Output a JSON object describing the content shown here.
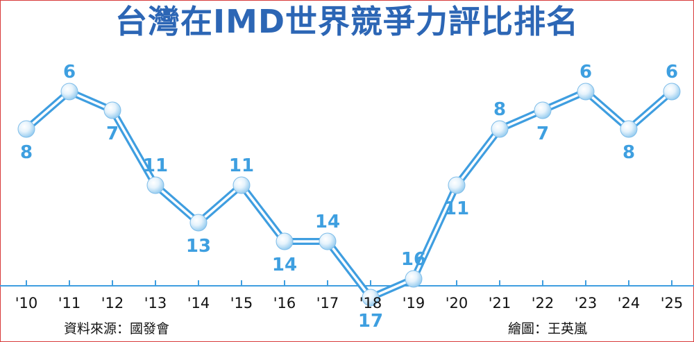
{
  "title": "台灣在IMD世界競爭力評比排名",
  "source": "資料來源：國發會",
  "credit": "繪圖：王英嵐",
  "colors": {
    "title": "#2c66b5",
    "line_outer": "#3f9ee0",
    "line_inner": "#ffffff",
    "label": "#3e9fe0",
    "axis": "#3f9ee0",
    "border": "#d83a3a"
  },
  "chart_data": {
    "type": "line",
    "title": "台灣在IMD世界競爭力評比排名",
    "categories": [
      "'10",
      "'11",
      "'12",
      "'13",
      "'14",
      "'15",
      "'16",
      "'17",
      "'18",
      "'19",
      "'20",
      "'21",
      "'22",
      "'23",
      "'24",
      "'25"
    ],
    "values": [
      8,
      6,
      7,
      11,
      13,
      11,
      14,
      14,
      17,
      16,
      11,
      8,
      7,
      6,
      8,
      6
    ],
    "label_positions": [
      "below",
      "above",
      "below",
      "above",
      "below",
      "above",
      "below",
      "above",
      "below",
      "above",
      "below",
      "above",
      "below",
      "above",
      "below",
      "above"
    ],
    "y_inverted": true,
    "grid": false,
    "legend": "none"
  }
}
